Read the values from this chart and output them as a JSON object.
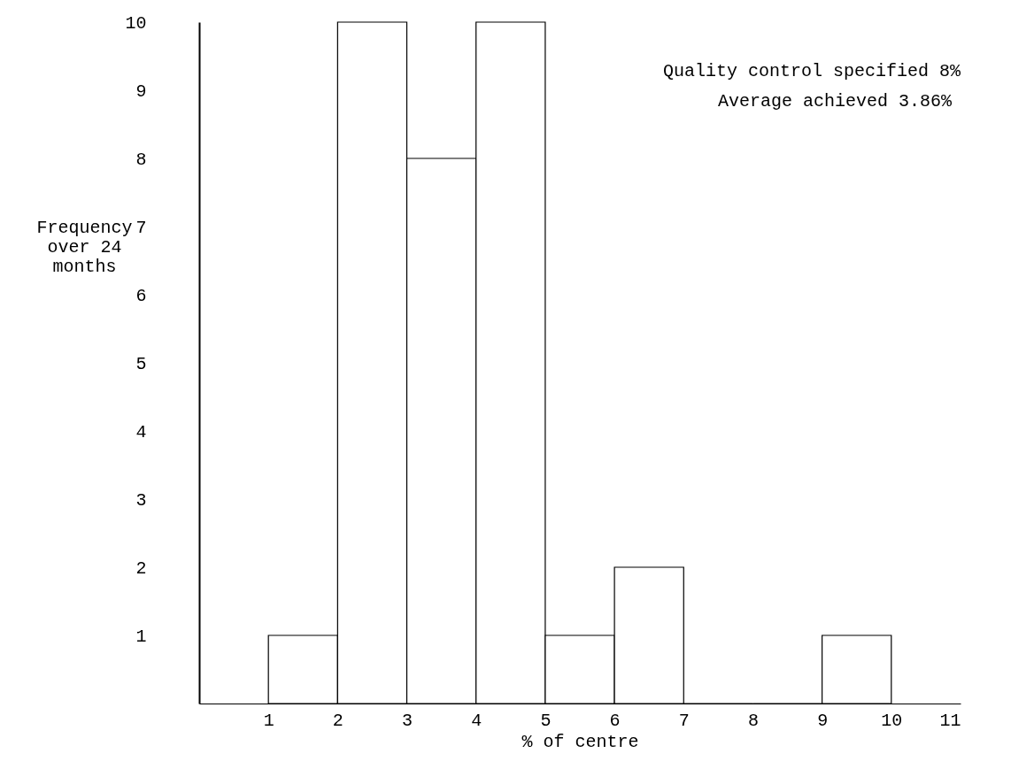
{
  "chart_data": {
    "type": "histogram",
    "xlabel": "% of centre",
    "ylabel": "Frequency over 24 months",
    "annotations": [
      "Quality control specified 8%",
      "Average achieved 3.86%"
    ],
    "bins": [
      1,
      2,
      3,
      4,
      5,
      6,
      7,
      8,
      9,
      10
    ],
    "values": [
      1,
      10,
      8,
      10,
      1,
      2,
      0,
      0,
      1
    ],
    "color": "#ffffff",
    "xlim": [
      0,
      11
    ],
    "xticks": [
      1,
      2,
      3,
      4,
      5,
      6,
      7,
      8,
      9,
      10,
      11
    ],
    "ylim": [
      0,
      10
    ],
    "yticks": [
      1,
      2,
      3,
      4,
      5,
      6,
      7,
      8,
      9,
      10
    ],
    "grid": false
  }
}
